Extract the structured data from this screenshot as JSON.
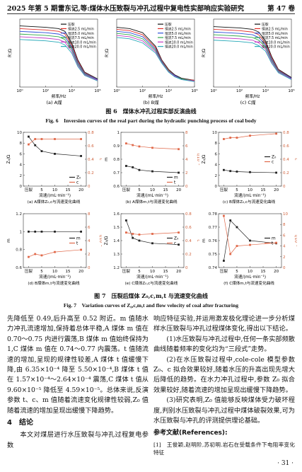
{
  "header": {
    "issue": "2025 年第 5 期",
    "title": "雷东记,等:煤体水压致裂与冲孔过程中复电性实部响应实验研究",
    "volume": "第 47 卷"
  },
  "figure6": {
    "caption_cn": "图 6　煤体水冲孔过程实部反演曲线",
    "caption_en": "Fig. 6　Inversion curves of the real part during the hydraulic punching process of coal body",
    "panels": [
      {
        "type": "line",
        "label": "(a) A煤",
        "x_label": "频率/Hz",
        "y_label": "R'/Ω",
        "log_x": true,
        "legend": "upper right",
        "x": [
          1,
          10,
          100,
          1000,
          3000,
          10000,
          30000,
          100000,
          1000000
        ],
        "xlim": [
          1,
          1000000
        ],
        "xticks": [
          {
            "value": 1,
            "label": "10⁰"
          },
          {
            "value": 100,
            "label": "10²"
          },
          {
            "value": 10000,
            "label": "10⁴"
          },
          {
            "value": 1000000,
            "label": "10⁶"
          }
        ],
        "ylim": [
          0,
          10
        ],
        "series": [
          {
            "name": "压裂",
            "color": "#111111",
            "values": [
              9.0,
              8.9,
              8.8,
              8.6,
              8.2,
              6.5,
              4.0,
              2.2,
              1.2
            ]
          },
          {
            "name": "恒流2.5 mL/min",
            "color": "#e0302a",
            "values": [
              8.6,
              8.5,
              8.4,
              8.2,
              7.8,
              6.2,
              3.8,
              2.1,
              1.1
            ]
          },
          {
            "name": "恒流5.0 mL/min",
            "color": "#2b4fd8",
            "values": [
              8.2,
              8.1,
              8.0,
              7.8,
              7.4,
              5.9,
              3.6,
              2.0,
              1.1
            ]
          },
          {
            "name": "恒流7.5 mL/min",
            "color": "#2fa84a",
            "values": [
              7.8,
              7.7,
              7.6,
              7.4,
              7.0,
              5.6,
              3.4,
              1.9,
              1.0
            ]
          },
          {
            "name": "恒流10.0 mL/min",
            "color": "#c23bc4",
            "values": [
              7.4,
              7.3,
              7.2,
              7.0,
              6.6,
              5.3,
              3.2,
              1.8,
              1.0
            ]
          },
          {
            "name": "恒流20.0 mL/min",
            "color": "#27a9b8",
            "values": [
              7.0,
              6.9,
              6.8,
              6.6,
              6.2,
              5.0,
              3.0,
              1.7,
              0.9
            ]
          }
        ]
      },
      {
        "type": "line",
        "label": "(b) B煤",
        "x_label": "频率/Hz",
        "y_label": "R'/Ω",
        "log_x": true,
        "legend": "upper right",
        "x": [
          1,
          10,
          100,
          1000,
          3000,
          10000,
          30000,
          100000,
          1000000
        ],
        "xlim": [
          1,
          1000000
        ],
        "xticks": [
          {
            "value": 1,
            "label": "10⁰"
          },
          {
            "value": 100,
            "label": "10²"
          },
          {
            "value": 10000,
            "label": "10⁴"
          },
          {
            "value": 1000000,
            "label": "10⁶"
          }
        ],
        "ylim": [
          0,
          10
        ],
        "series": [
          {
            "name": "压裂",
            "color": "#111111",
            "values": [
              8.8,
              8.6,
              8.0,
              6.0,
              4.0,
              2.6,
              1.8,
              1.3,
              1.0
            ]
          },
          {
            "name": "恒流2.5 mL/min",
            "color": "#e0302a",
            "values": [
              8.5,
              8.3,
              7.7,
              5.8,
              3.9,
              2.5,
              1.7,
              1.2,
              1.0
            ]
          },
          {
            "name": "恒流5.0 mL/min",
            "color": "#2b4fd8",
            "values": [
              8.2,
              8.0,
              7.4,
              5.6,
              3.8,
              2.4,
              1.7,
              1.2,
              0.9
            ]
          },
          {
            "name": "恒流7.5 mL/min",
            "color": "#2fa84a",
            "values": [
              7.9,
              7.7,
              7.1,
              5.4,
              3.7,
              2.4,
              1.6,
              1.2,
              0.9
            ]
          },
          {
            "name": "恒流10.0 mL/min",
            "color": "#c23bc4",
            "values": [
              7.6,
              7.4,
              6.8,
              5.2,
              3.6,
              2.3,
              1.6,
              1.1,
              0.9
            ]
          },
          {
            "name": "恒流20.0 mL/min",
            "color": "#27a9b8",
            "values": [
              7.3,
              7.1,
              6.5,
              5.0,
              3.5,
              2.2,
              1.5,
              1.1,
              0.8
            ]
          }
        ]
      },
      {
        "type": "line",
        "label": "(c) C煤",
        "x_label": "频率/Hz",
        "y_label": "R'/Ω",
        "log_x": true,
        "legend": "upper right",
        "x": [
          1,
          10,
          100,
          1000,
          3000,
          10000,
          30000,
          100000,
          1000000
        ],
        "xlim": [
          1,
          1000000
        ],
        "xticks": [
          {
            "value": 1,
            "label": "10⁰"
          },
          {
            "value": 100,
            "label": "10²"
          },
          {
            "value": 10000,
            "label": "10⁴"
          },
          {
            "value": 1000000,
            "label": "10⁶"
          }
        ],
        "ylim": [
          0,
          10
        ],
        "series": [
          {
            "name": "压裂",
            "color": "#111111",
            "values": [
              8.9,
              8.8,
              8.7,
              8.5,
              8.1,
              6.8,
              4.5,
              2.6,
              1.4
            ]
          },
          {
            "name": "恒流2.5 mL/min",
            "color": "#e0302a",
            "values": [
              8.5,
              8.4,
              8.3,
              8.1,
              7.7,
              6.5,
              4.3,
              2.5,
              1.3
            ]
          },
          {
            "name": "恒流5.0 mL/min",
            "color": "#2b4fd8",
            "values": [
              8.1,
              8.0,
              7.9,
              7.7,
              7.3,
              6.2,
              4.1,
              2.4,
              1.3
            ]
          },
          {
            "name": "恒流7.5 mL/min",
            "color": "#2fa84a",
            "values": [
              7.7,
              7.6,
              7.5,
              7.3,
              6.9,
              5.9,
              3.9,
              2.3,
              1.2
            ]
          },
          {
            "name": "恒流10.0 mL/min",
            "color": "#c23bc4",
            "values": [
              7.3,
              7.2,
              7.1,
              6.9,
              6.5,
              5.6,
              3.7,
              2.2,
              1.2
            ]
          },
          {
            "name": "恒流20.0 mL/min",
            "color": "#27a9b8",
            "values": [
              6.9,
              6.8,
              6.7,
              6.5,
              6.1,
              5.3,
              3.5,
              2.1,
              1.1
            ]
          }
        ]
      }
    ]
  },
  "figure7": {
    "caption_cn": "图 7　压裂后煤体 Z₀,c,m,t 与流速变化曲线",
    "caption_en": "Fig. 7　Variation curves of Z₀,c,m,t and flow velocity of coal after fracturing",
    "panels": [
      {
        "type": "line",
        "label": "(a) A煤体Z₀,c与流速变化曲线",
        "x_label": "流速/(mL·min⁻¹)",
        "y_label": "Z₀/Ω",
        "y2_label": "c",
        "legend": "lower right",
        "markers": true,
        "x": [
          0,
          2.5,
          5,
          10,
          20
        ],
        "xlim": [
          -2,
          22
        ],
        "xticks": [
          {
            "value": 0,
            "label": "压裂"
          },
          5,
          10,
          15,
          20
        ],
        "ylim": [
          0,
          10
        ],
        "yticks": [
          0,
          2,
          4,
          6,
          8,
          10
        ],
        "y2lim": [
          0,
          0.8
        ],
        "y2ticks": [
          0,
          0.2,
          0.4,
          0.6,
          0.8
        ],
        "series": [
          {
            "name": "Z₀",
            "color": "#222222",
            "values": [
              9.2,
              7.6,
              6.5,
              6.0,
              5.6
            ]
          },
          {
            "name": "c",
            "color": "#e0694a",
            "axis": "y2",
            "values": [
              0.62,
              0.7,
              0.7,
              0.7,
              0.7
            ]
          }
        ]
      },
      {
        "type": "line",
        "label": "(b) A煤体m,t与流速变化曲线",
        "x_label": "流速/(mL·min⁻¹)",
        "y_label": "m",
        "y2_label": "t/10⁻⁴",
        "legend": "lower right",
        "markers": true,
        "x": [
          0,
          2.5,
          5,
          10,
          20
        ],
        "xlim": [
          -2,
          22
        ],
        "xticks": [
          {
            "value": 0,
            "label": "压裂"
          },
          5,
          10,
          15,
          20
        ],
        "ylim": [
          0.6,
          1
        ],
        "yticks": [
          0.6,
          0.7,
          0.8,
          0.9,
          1
        ],
        "y2lim": [
          0,
          8
        ],
        "y2ticks": [
          0,
          2,
          4,
          6,
          8
        ],
        "series": [
          {
            "name": "m",
            "color": "#222222",
            "values": [
              0.75,
              0.74,
              0.72,
              0.71,
              0.7
            ]
          },
          {
            "name": "t",
            "color": "#e0694a",
            "axis": "y2",
            "values": [
              6.35,
              6.1,
              5.9,
              5.7,
              5.5
            ]
          }
        ]
      },
      {
        "type": "line",
        "label": "(c) B煤体Z₀,c与流速变化曲线",
        "x_label": "流速/(mL·min⁻¹)",
        "y_label": "Z₀/Ω",
        "y2_label": "c",
        "legend": "center right",
        "markers": true,
        "x": [
          0,
          2.5,
          5,
          10,
          20
        ],
        "xlim": [
          -2,
          22
        ],
        "xticks": [
          {
            "value": 0,
            "label": "压裂"
          },
          5,
          10,
          15,
          20
        ],
        "ylim": [
          0,
          10
        ],
        "yticks": [
          0,
          2,
          4,
          6,
          8,
          10
        ],
        "y2lim": [
          0,
          0.8
        ],
        "y2ticks": [
          0,
          0.2,
          0.4,
          0.6,
          0.8
        ],
        "series": [
          {
            "name": "Z₀",
            "color": "#222222",
            "values": [
              3.0,
              2.8,
              2.7,
              2.6,
              2.5
            ]
          },
          {
            "name": "c",
            "color": "#e0694a",
            "axis": "y2",
            "values": [
              0.7,
              0.72,
              0.72,
              0.75,
              0.78
            ]
          }
        ]
      },
      {
        "type": "line",
        "label": "(d) B煤体m,t与流速变化曲线",
        "x_label": "流速/(mL·min⁻¹)",
        "y_label": "m",
        "y2_label": "t/10⁻⁴",
        "legend": "center right",
        "markers": true,
        "x": [
          0,
          2.5,
          5,
          10,
          20
        ],
        "xlim": [
          -2,
          22
        ],
        "xticks": [
          {
            "value": 0,
            "label": "压裂"
          },
          5,
          10,
          15,
          20
        ],
        "ylim": [
          0.6,
          1.2
        ],
        "yticks": [
          0.6,
          0.8,
          1,
          1.2
        ],
        "y2lim": [
          0,
          8
        ],
        "y2ticks": [
          0,
          2,
          4,
          6,
          8
        ],
        "series": [
          {
            "name": "m",
            "color": "#222222",
            "values": [
              1,
              1,
              1,
              1,
              1
            ]
          },
          {
            "name": "t",
            "color": "#e0694a",
            "axis": "y2",
            "values": [
              1.57,
              2.0,
              1.8,
              2.3,
              2.64
            ]
          }
        ]
      },
      {
        "type": "line",
        "label": "(e) C煤体Z₀,c与流速变化曲线",
        "x_label": "流速/(mL·min⁻¹)",
        "y_label": "Z₀/Ω",
        "y2_label": "c",
        "legend": "center right",
        "markers": true,
        "x": [
          0,
          2.5,
          5,
          10,
          20
        ],
        "xlim": [
          -2,
          22
        ],
        "xticks": [
          {
            "value": 0,
            "label": "压裂"
          },
          5,
          10,
          15,
          20
        ],
        "ylim": [
          1.2,
          1.6
        ],
        "yticks": [
          1.2,
          1.3,
          1.4,
          1.5,
          1.6
        ],
        "y2lim": [
          0,
          0.8
        ],
        "y2ticks": [
          0,
          0.2,
          0.4,
          0.6,
          0.8
        ],
        "series": [
          {
            "name": "Z₀",
            "color": "#222222",
            "values": [
              1.55,
              1.42,
              1.4,
              1.38,
              1.37
            ]
          },
          {
            "name": "c",
            "color": "#e0694a",
            "axis": "y2",
            "values": [
              0.52,
              0.5,
              0.49,
              0.5,
              0.52
            ]
          }
        ]
      },
      {
        "type": "line",
        "label": "(f) C煤体m,t与流速变化曲线",
        "x_label": "流速/(mL·min⁻¹)",
        "y_label": "m",
        "y2_label": "t/10⁻⁵",
        "legend": "center right",
        "markers": true,
        "x": [
          0,
          2.5,
          5,
          10,
          20
        ],
        "xlim": [
          -2,
          22
        ],
        "xticks": [
          {
            "value": 0,
            "label": "压裂"
          },
          5,
          10,
          15,
          20
        ],
        "ylim": [
          0.74,
          0.78
        ],
        "yticks": [
          0.74,
          0.75,
          0.76,
          0.77,
          0.78
        ],
        "y2lim": [
          0,
          10
        ],
        "y2ticks": [
          0,
          2,
          4,
          6,
          8,
          10
        ],
        "series": [
          {
            "name": "m",
            "color": "#222222",
            "values": [
              0.745,
              0.775,
              0.77,
              0.76,
              0.758
            ]
          },
          {
            "name": "t",
            "color": "#e0694a",
            "axis": "y2",
            "values": [
              9.6,
              2.5,
              4.0,
              4.2,
              4.59
            ]
          }
        ]
      }
    ]
  },
  "body": {
    "left": [
      "先降低至 0.49,后升高至 0.52 附近。m 值随水力冲孔流速增加,保持着总体平稳,A 煤体 m 值在 0.70～0.75 内进行震荡,B 煤体 m 值始终保持为 1,C 煤体 m 值在 0.74～0.77 内震荡。t 值随流速的增加,呈现的规律性较差,A 煤体 t 值缓慢下降,由 6.35×10⁻⁴ 降至 5.50×10⁻⁴,B 煤体 t 值在 1.57×10⁻⁴～2.64×10⁻⁴ 震荡,C 煤体 t 值从 9.60×10⁻⁵ 降低至 4.59×10⁻⁵。总体来说,反演参数 t、c、m 值随着流速变化规律性较弱,Z₀ 值随着流速的增加呈现出缓慢下降趋势。"
    ],
    "heading": "4　结论",
    "left_after_heading": "本文对煤层进行水压致裂与冲孔过程复电参数",
    "right": [
      "响应特征实验,并运用激发极化理论进一步分析煤样水压致裂与冲孔过程煤体变化,得出以下结论。",
      "(1)水压致裂与冲孔过程中,任何一条实部频散曲线随着频率的变化均为“三段式”走势。",
      "(2)在水压致裂过程中,cole-cole 模型参数 Z₀、c 拟合效果较好,随着水压的升高出现先增大后降低的趋势。在水力冲孔过程中,参数 Z₀ 拟合效果较好,随着流速的增加呈现出缓慢下降趋势。",
      "(3)研究表明,Z₀ 值能够反映煤体受力破坏程度,判别水压致裂与冲孔过程中煤体破裂效果,可为水压致裂与冲孔的评测提供理论基础。"
    ],
    "references_title": "参考文献(References):",
    "reference_1": "[1]　王俊颖,赵明阶,苏初明.岩石在受载条件下电阻率变化特征"
  },
  "page_number": "· 31 ·"
}
